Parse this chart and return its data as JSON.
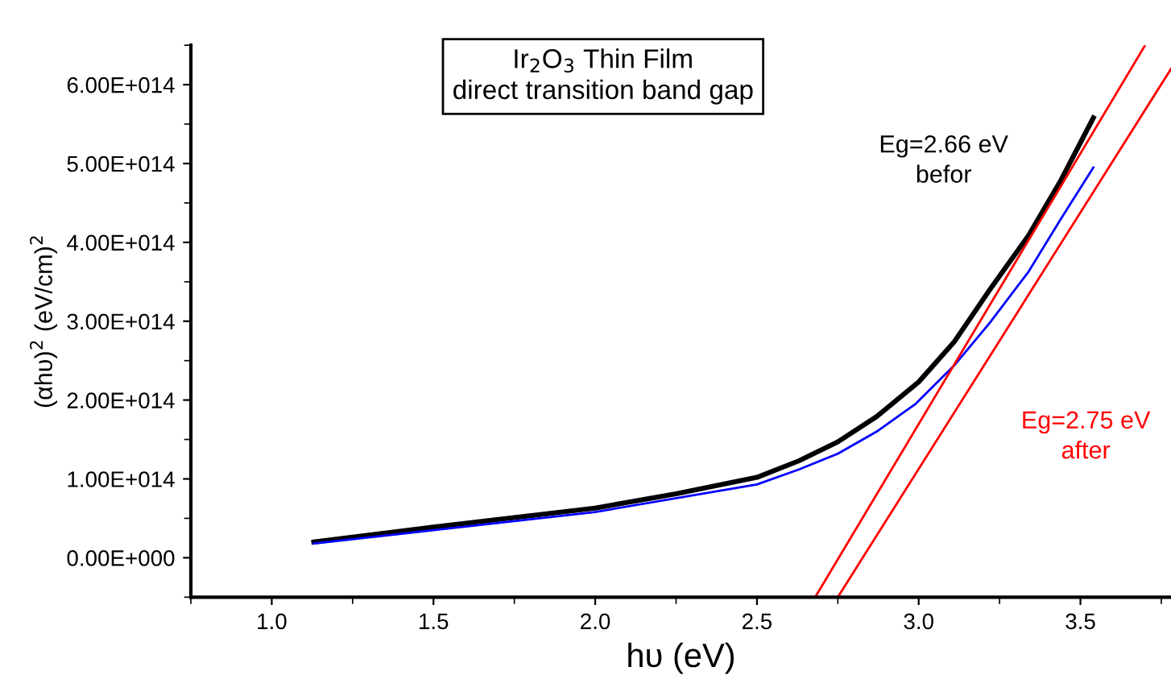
{
  "chart_data": {
    "type": "line",
    "title": "Ir$_{2}$O$_{3}$ Thin Film\ndirect transition band gap",
    "xlabel": "hυ (eV)",
    "ylabel": "(αhυ)$^{2}$ (eV/cm)$^{2}$",
    "xlim": [
      0.75,
      3.78
    ],
    "xticks": [
      {
        "value": 1,
        "label": "1.0"
      },
      1.5,
      {
        "value": 2,
        "label": "2.0"
      },
      2.5,
      {
        "value": 3,
        "label": "3.0"
      },
      3.5
    ],
    "ylim": [
      -50000000000000.0,
      650000000000000.0
    ],
    "yticks": [
      {
        "value": 0,
        "label": "0.00E+000"
      },
      {
        "value": 100000000000000.0,
        "label": "1.00E+014"
      },
      {
        "value": 200000000000000.0,
        "label": "2.00E+014"
      },
      {
        "value": 300000000000000.0,
        "label": "3.00E+014"
      },
      {
        "value": 400000000000000.0,
        "label": "4.00E+014"
      },
      {
        "value": 500000000000000.0,
        "label": "5.00E+014"
      },
      {
        "value": 600000000000000.0,
        "label": "6.00E+014"
      }
    ],
    "grid": false,
    "legend": false,
    "series": [
      {
        "color": "#000000",
        "x": [
          1.13,
          1.5,
          2.0,
          2.25,
          2.5,
          2.63,
          2.75,
          2.87,
          3.0,
          3.11,
          3.22,
          3.34,
          3.44,
          3.54
        ],
        "values": [
          20000000000000.0,
          39000000000000.0,
          63000000000000.0,
          81000000000000.0,
          102000000000000.0,
          123000000000000.0,
          147000000000000.0,
          179000000000000.0,
          223000000000000.0,
          274000000000000.0,
          340000000000000.0,
          409000000000000.0,
          479000000000000.0,
          558000000000000.0
        ]
      },
      {
        "color": "#0000ff",
        "x": [
          1.13,
          1.5,
          2.0,
          2.5,
          2.63,
          2.75,
          2.87,
          2.99,
          3.11,
          3.22,
          3.34,
          3.44,
          3.54
        ],
        "values": [
          18000000000000.0,
          35000000000000.0,
          58000000000000.0,
          93000000000000.0,
          112000000000000.0,
          132000000000000.0,
          160000000000000.0,
          195000000000000.0,
          244000000000000.0,
          298000000000000.0,
          363000000000000.0,
          430000000000000.0,
          495000000000000.0
        ]
      },
      {
        "color": "#ff0000",
        "x": [
          2.68,
          3.7
        ],
        "values": [
          -50000000000000.0,
          650000000000000.0
        ]
      },
      {
        "color": "#ff0000",
        "x": [
          2.75,
          3.78
        ],
        "values": [
          -50000000000000.0,
          620000000000000.0
        ]
      }
    ],
    "annotations": [
      "Eg=2.66 eV\nbefor",
      "Eg=2.75 eV\nafter"
    ]
  }
}
